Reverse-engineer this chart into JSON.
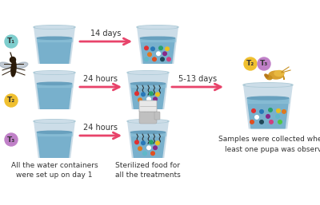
{
  "background_color": "#ffffff",
  "arrow_color": "#e8436a",
  "cup_outer": "#c5dce8",
  "cup_rim": "#b8d0de",
  "water_dark": "#6aaec8",
  "water_mid": "#7fb8d0",
  "t1_color": "#7ecece",
  "t2_color": "#f0c030",
  "t3_color": "#c080c8",
  "dot_colors": [
    "#e03030",
    "#2878b8",
    "#28a070",
    "#e8c020",
    "#e07820",
    "#ffffff",
    "#882888",
    "#60b8c8",
    "#e05020",
    "#204858",
    "#d04080",
    "#50c840"
  ],
  "wave_color": "#222222",
  "mosquito_color": "#3a2010",
  "hand_color": "#b8b8b8",
  "shrimp_color": "#c89020",
  "label_14days": "14 days",
  "label_24hours": "24 hours",
  "label_513days": "5-13 days",
  "label_containers": "All the water containers\nwere set up on day 1",
  "label_sterilized": "Sterilized food for\nall the treatments",
  "label_samples": "Samples were collected when at\nleast one pupa was observed",
  "t1_label": "T₁",
  "t2_label": "T₂",
  "t3_label": "T₃",
  "font_size_label": 6.5,
  "font_size_arrow": 7,
  "font_size_t": 6.5
}
